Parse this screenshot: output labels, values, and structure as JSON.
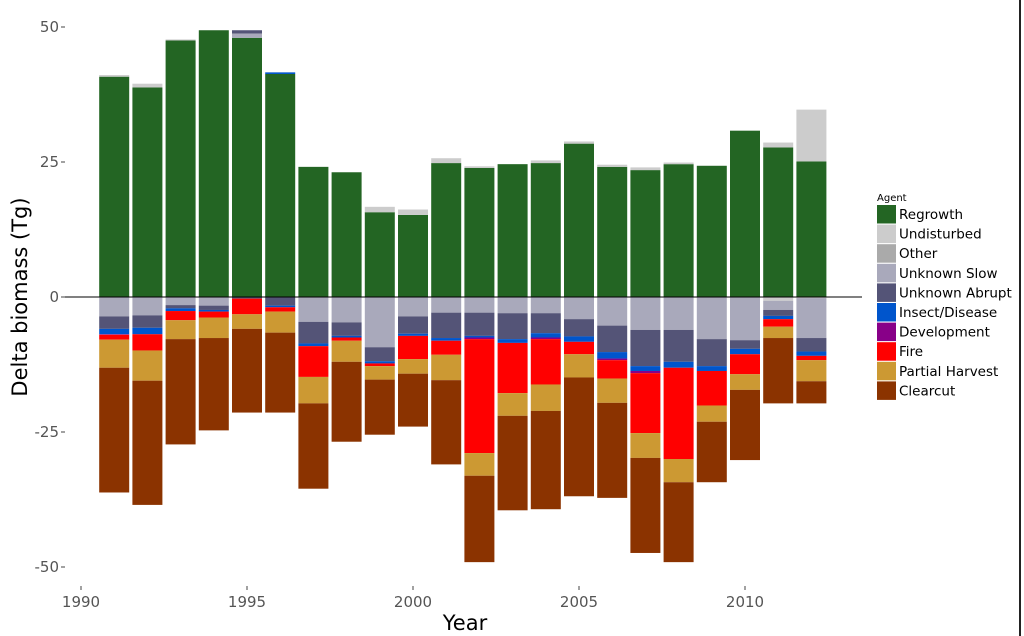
{
  "chart_data": {
    "type": "bar",
    "stacked": true,
    "xlabel": "Year",
    "ylabel": "Delta biomass (Tg)",
    "ylim": [
      -50,
      50
    ],
    "y_ticks": [
      50,
      25,
      0,
      -25,
      -50
    ],
    "x_ticks": [
      1990,
      1995,
      2000,
      2005,
      2010
    ],
    "grid": false,
    "legend_title": "Agent",
    "legend_position": "right",
    "categories": [
      1991,
      1992,
      1993,
      1994,
      1995,
      1996,
      1997,
      1998,
      1999,
      2000,
      2001,
      2002,
      2003,
      2004,
      2005,
      2006,
      2007,
      2008,
      2009,
      2010,
      2011,
      2012
    ],
    "series": [
      {
        "name": "Regrowth",
        "color": "#236523",
        "above_zero": [
          40.8,
          38.8,
          47.5,
          49.4,
          48.0,
          41.3,
          24.1,
          23.1,
          15.7,
          15.2,
          24.8,
          23.9,
          24.6,
          24.8,
          28.4,
          24.1,
          23.5,
          24.6,
          24.3,
          30.8,
          27.7,
          25.1
        ],
        "below_zero": [
          0,
          0,
          0,
          0,
          0,
          0,
          0,
          0,
          0,
          0,
          0,
          0,
          0,
          0,
          0,
          0,
          0,
          0,
          0,
          0,
          0,
          0
        ]
      },
      {
        "name": "Undisturbed",
        "color": "#cccccc",
        "above_zero": [
          0.3,
          0.7,
          0.2,
          0,
          0,
          0,
          0,
          0,
          1.0,
          1.0,
          0.9,
          0.3,
          0,
          0.5,
          0.4,
          0.4,
          0.5,
          0.3,
          0,
          0,
          0.9,
          9.6
        ],
        "below_zero": [
          0,
          0,
          0,
          0,
          0,
          0,
          0,
          0,
          0,
          0,
          0,
          0,
          0,
          0,
          0,
          0,
          0,
          0,
          0,
          0,
          0.7,
          0.2
        ]
      },
      {
        "name": "Other",
        "color": "#aaaaaa",
        "above_zero": [
          0,
          0,
          0,
          0,
          0,
          0,
          0,
          0,
          0,
          0,
          0,
          0,
          0,
          0,
          0,
          0,
          0,
          0,
          0,
          0,
          0,
          0
        ],
        "below_zero": [
          0,
          0,
          0,
          0,
          0,
          0,
          0,
          0,
          0,
          0,
          0,
          0,
          0,
          0,
          0,
          0,
          0,
          0,
          0,
          0,
          0,
          0
        ]
      },
      {
        "name": "Unknown Slow",
        "color": "#a9a9bb",
        "above_zero": [
          0,
          0,
          0,
          0,
          0.8,
          0,
          0,
          0,
          0,
          0,
          0,
          0,
          0,
          0,
          0,
          0,
          0,
          0,
          0,
          0,
          0,
          0
        ],
        "below_zero": [
          3.6,
          3.4,
          1.5,
          1.6,
          0,
          0,
          4.6,
          4.7,
          9.3,
          3.6,
          2.9,
          2.9,
          3.0,
          3.0,
          4.1,
          5.3,
          6.1,
          6.1,
          7.8,
          8.0,
          1.7,
          7.4
        ]
      },
      {
        "name": "Unknown Abrupt",
        "color": "#545477",
        "above_zero": [
          0,
          0,
          0,
          0,
          0.6,
          0,
          0,
          0,
          0,
          0,
          0,
          0,
          0,
          0,
          0,
          0,
          0,
          0,
          0,
          0,
          0,
          0
        ],
        "below_zero": [
          2.3,
          2.3,
          0.6,
          0.8,
          0.3,
          1.6,
          4.0,
          2.5,
          2.6,
          3.2,
          4.7,
          4.3,
          4.8,
          3.7,
          3.2,
          4.9,
          6.7,
          5.9,
          5.0,
          1.6,
          1.1,
          2.5
        ]
      },
      {
        "name": "Insect/Disease",
        "color": "#0055cc",
        "above_zero": [
          0,
          0,
          0,
          0,
          0,
          0.3,
          0,
          0,
          0,
          0,
          0,
          0,
          0,
          0,
          0,
          0,
          0,
          0,
          0,
          0,
          0,
          0
        ],
        "below_zero": [
          1.0,
          1.2,
          0.5,
          0.3,
          0,
          0.3,
          0.5,
          0.3,
          0.4,
          0.4,
          0.5,
          0.3,
          0.7,
          0.8,
          1.0,
          1.2,
          0.9,
          1.1,
          0.9,
          1.0,
          0.6,
          0.8
        ]
      },
      {
        "name": "Development",
        "color": "#880088",
        "above_zero": [
          0,
          0,
          0,
          0,
          0,
          0,
          0,
          0,
          0,
          0,
          0,
          0,
          0,
          0,
          0,
          0,
          0,
          0,
          0,
          0,
          0,
          0
        ],
        "below_zero": [
          0.1,
          0,
          0,
          0,
          0,
          0,
          0,
          0,
          0,
          0,
          0,
          0.3,
          0,
          0.3,
          0,
          0.3,
          0.4,
          0,
          0,
          0,
          0,
          0
        ]
      },
      {
        "name": "Fire",
        "color": "#ff0000",
        "above_zero": [
          0,
          0,
          0,
          0,
          0,
          0,
          0,
          0,
          0,
          0,
          0,
          0,
          0,
          0,
          0,
          0,
          0,
          0,
          0,
          0,
          0,
          0
        ],
        "below_zero": [
          0.9,
          3.0,
          1.7,
          1.1,
          2.9,
          0.8,
          5.7,
          0.6,
          0.5,
          4.3,
          2.6,
          21.1,
          9.3,
          8.4,
          2.3,
          3.4,
          11.1,
          16.9,
          6.4,
          3.7,
          1.4,
          0.8
        ]
      },
      {
        "name": "Partial Harvest",
        "color": "#cc9933",
        "above_zero": [
          0,
          0,
          0,
          0,
          0,
          0,
          0,
          0,
          0,
          0,
          0,
          0,
          0,
          0,
          0,
          0,
          0,
          0,
          0,
          0,
          0,
          0
        ],
        "below_zero": [
          5.2,
          5.6,
          3.5,
          3.8,
          2.7,
          3.9,
          4.9,
          3.9,
          2.5,
          2.7,
          4.7,
          4.2,
          4.2,
          4.9,
          4.3,
          4.5,
          4.6,
          4.3,
          3.0,
          2.9,
          2.1,
          3.9
        ]
      },
      {
        "name": "Clearcut",
        "color": "#8b3300",
        "above_zero": [
          0,
          0,
          0,
          0,
          0,
          0,
          0,
          0,
          0,
          0,
          0,
          0,
          0,
          0,
          0,
          0,
          0,
          0,
          0,
          0,
          0,
          0
        ],
        "below_zero": [
          23.1,
          23.0,
          19.5,
          17.1,
          15.5,
          14.8,
          15.8,
          14.8,
          10.2,
          9.8,
          15.6,
          16.0,
          17.5,
          18.2,
          22.0,
          17.6,
          17.6,
          14.8,
          11.2,
          13.0,
          12.1,
          4.1
        ]
      }
    ]
  }
}
